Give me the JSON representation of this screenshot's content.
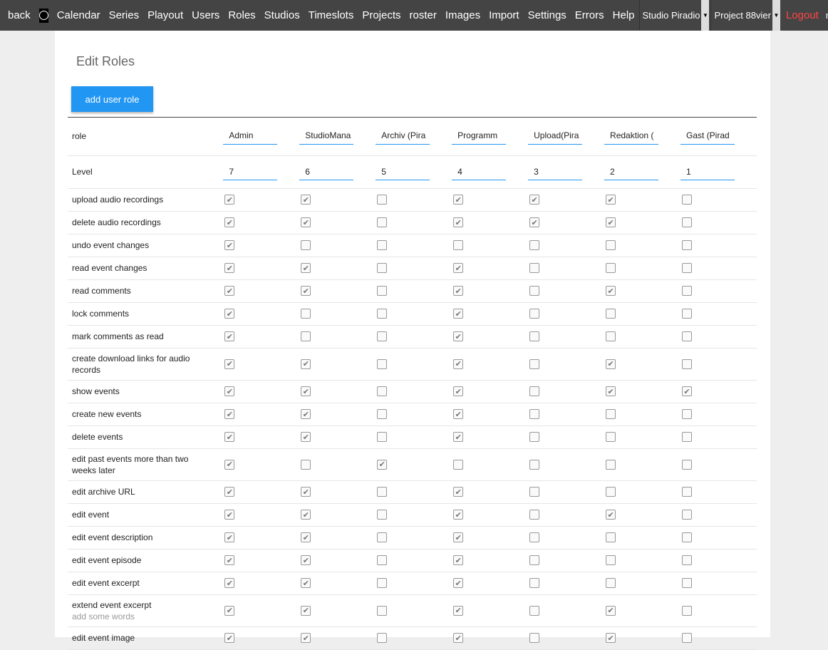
{
  "nav": {
    "back": "back",
    "items": [
      "Calendar",
      "Series",
      "Playout",
      "Users",
      "Roles",
      "Studios",
      "Timeslots",
      "Projects",
      "roster",
      "Images",
      "Import",
      "Settings",
      "Errors",
      "Help"
    ],
    "studio": "Studio Piradio",
    "project": "Project 88vier",
    "logout": "Logout",
    "user": "milan"
  },
  "page": {
    "title": "Edit Roles",
    "add_button": "add user role"
  },
  "table": {
    "role_label": "role",
    "level_label": "Level",
    "roles": [
      "Admin",
      "StudioMana",
      "Archiv (Pira",
      "Programm",
      "Upload(Pira",
      "Redaktion (",
      "Gast (Pirad"
    ],
    "levels": [
      "7",
      "6",
      "5",
      "4",
      "3",
      "2",
      "1"
    ],
    "permissions": [
      {
        "label": "upload audio recordings",
        "checks": [
          1,
          1,
          0,
          1,
          1,
          1,
          0
        ]
      },
      {
        "label": "delete audio recordings",
        "checks": [
          1,
          1,
          0,
          1,
          1,
          1,
          0
        ]
      },
      {
        "label": "undo event changes",
        "checks": [
          1,
          0,
          0,
          0,
          0,
          0,
          0
        ]
      },
      {
        "label": "read event changes",
        "checks": [
          1,
          1,
          0,
          1,
          0,
          0,
          0
        ]
      },
      {
        "label": "read comments",
        "checks": [
          1,
          1,
          0,
          1,
          0,
          1,
          0
        ]
      },
      {
        "label": "lock comments",
        "checks": [
          1,
          0,
          0,
          1,
          0,
          0,
          0
        ]
      },
      {
        "label": "mark comments as read",
        "checks": [
          1,
          0,
          0,
          1,
          0,
          0,
          0
        ]
      },
      {
        "label": "create download links for audio records",
        "checks": [
          1,
          1,
          0,
          1,
          0,
          1,
          0
        ]
      },
      {
        "label": "show events",
        "checks": [
          1,
          1,
          0,
          1,
          0,
          1,
          1
        ]
      },
      {
        "label": "create new events",
        "checks": [
          1,
          1,
          0,
          1,
          0,
          0,
          0
        ]
      },
      {
        "label": "delete events",
        "checks": [
          1,
          1,
          0,
          1,
          0,
          0,
          0
        ]
      },
      {
        "label": "edit past events more than two weeks later",
        "checks": [
          1,
          0,
          1,
          0,
          0,
          0,
          0
        ]
      },
      {
        "label": "edit archive URL",
        "checks": [
          1,
          1,
          0,
          1,
          0,
          0,
          0
        ]
      },
      {
        "label": "edit event",
        "checks": [
          1,
          1,
          0,
          1,
          0,
          1,
          0
        ]
      },
      {
        "label": "edit event description",
        "checks": [
          1,
          1,
          0,
          1,
          0,
          0,
          0
        ]
      },
      {
        "label": "edit event episode",
        "checks": [
          1,
          1,
          0,
          1,
          0,
          0,
          0
        ]
      },
      {
        "label": "edit event excerpt",
        "checks": [
          1,
          1,
          0,
          1,
          0,
          0,
          0
        ]
      },
      {
        "label": "extend event excerpt",
        "sub": "add some words",
        "checks": [
          1,
          1,
          0,
          1,
          0,
          1,
          0
        ]
      },
      {
        "label": "edit event image",
        "checks": [
          1,
          1,
          0,
          1,
          0,
          1,
          0
        ]
      }
    ]
  }
}
